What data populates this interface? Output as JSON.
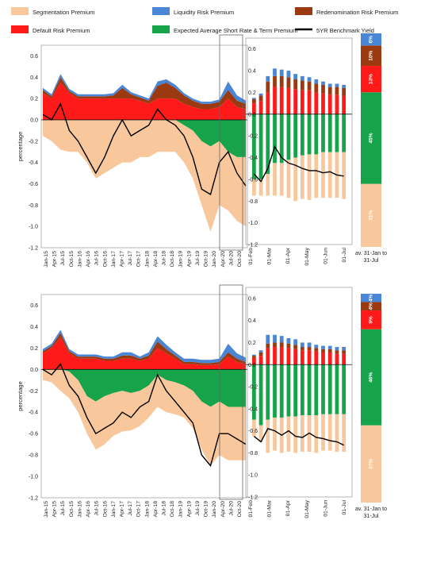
{
  "legend": {
    "items": [
      {
        "label": "Segmentation Premium",
        "color": "#f8c89c",
        "kind": "box"
      },
      {
        "label": "Liquidity Risk Premium",
        "color": "#4a86d6",
        "kind": "box"
      },
      {
        "label": "Redenomination Risk Premium",
        "color": "#9b3a10",
        "kind": "box"
      },
      {
        "label": "Default Risk Premium",
        "color": "#ff1a1a",
        "kind": "box"
      },
      {
        "label": "Expected Average Short Rate & Term Premium",
        "color": "#17a34a",
        "kind": "box"
      },
      {
        "label": "5YR Benchmark Yield",
        "color": "#000000",
        "kind": "line"
      }
    ]
  },
  "chart_data": [
    {
      "type": "area",
      "ylabel": "percentage",
      "ylim": [
        -1.2,
        0.7
      ],
      "yticks": [
        "0.6",
        "0.4",
        "0.2",
        "0.0",
        "-0.2",
        "-0.4",
        "-0.6",
        "-0.8",
        "-1.0",
        "-1.2"
      ],
      "xticks": [
        "Jan-15",
        "Apr-15",
        "Jul-15",
        "Oct-15",
        "Jan-16",
        "Apr-16",
        "Jul-16",
        "Oct-16",
        "Jan-17",
        "Apr-17",
        "Jul-17",
        "Oct-17",
        "Jan-18",
        "Apr-18",
        "Jul-18",
        "Oct-18",
        "Jan-19",
        "Apr-19",
        "Jul-19",
        "Oct-19",
        "Jan-20",
        "Apr-20",
        "Jul-20",
        "Oct-20"
      ],
      "series": [
        {
          "name": "Segmentation Premium",
          "values": [
            -0.15,
            -0.2,
            -0.28,
            -0.3,
            -0.3,
            -0.4,
            -0.55,
            -0.5,
            -0.45,
            -0.4,
            -0.4,
            -0.35,
            -0.35,
            -0.3,
            -0.3,
            -0.3,
            -0.35,
            -0.45,
            -0.6,
            -0.8,
            -0.6,
            -0.55,
            -0.6,
            -0.65
          ]
        },
        {
          "name": "Expected Average Short Rate & Term Premium",
          "values": [
            0,
            0,
            0,
            0,
            0,
            0,
            0,
            0,
            0,
            0,
            0,
            0,
            0,
            0,
            0,
            0,
            -0.05,
            -0.1,
            -0.2,
            -0.25,
            -0.2,
            -0.3,
            -0.35,
            -0.35
          ]
        },
        {
          "name": "Default Risk Premium",
          "values": [
            0.25,
            0.2,
            0.35,
            0.25,
            0.2,
            0.2,
            0.2,
            0.2,
            0.2,
            0.2,
            0.2,
            0.18,
            0.15,
            0.2,
            0.2,
            0.2,
            0.15,
            0.12,
            0.1,
            0.1,
            0.12,
            0.2,
            0.12,
            0.1
          ]
        },
        {
          "name": "Redenomination Risk Premium",
          "values": [
            0.03,
            0.02,
            0.05,
            0.02,
            0.02,
            0.02,
            0.02,
            0.02,
            0.03,
            0.1,
            0.04,
            0.03,
            0.03,
            0.12,
            0.15,
            0.1,
            0.08,
            0.06,
            0.05,
            0.05,
            0.05,
            0.08,
            0.06,
            0.05
          ]
        },
        {
          "name": "Liquidity Risk Premium",
          "values": [
            0.02,
            0.02,
            0.03,
            0.02,
            0.02,
            0.02,
            0.02,
            0.02,
            0.02,
            0.03,
            0.02,
            0.02,
            0.02,
            0.04,
            0.03,
            0.03,
            0.02,
            0.02,
            0.02,
            0.02,
            0.02,
            0.08,
            0.05,
            0.03
          ]
        },
        {
          "name": "5YR Benchmark Yield",
          "values": [
            0.05,
            0.0,
            0.15,
            -0.1,
            -0.2,
            -0.35,
            -0.5,
            -0.35,
            -0.15,
            0.0,
            -0.15,
            -0.1,
            -0.05,
            0.1,
            0.0,
            -0.05,
            -0.15,
            -0.35,
            -0.65,
            -0.7,
            -0.4,
            -0.3,
            -0.5,
            -0.62
          ]
        }
      ]
    },
    {
      "type": "bar",
      "ylim": [
        -1.2,
        0.7
      ],
      "yticks": [
        "0.6",
        "0.4",
        "0.2",
        "0.0",
        "-0.2",
        "-0.4",
        "-0.6",
        "-0.8",
        "-1.0",
        "-1.2"
      ],
      "xticks": [
        "01-Feb",
        "01-Mar",
        "01-Apr",
        "01-May",
        "01-Jun",
        "01-Jul"
      ],
      "series": [
        {
          "name": "Segmentation Premium",
          "values": [
            -0.15,
            -0.15,
            -0.2,
            -0.3,
            -0.3,
            -0.35,
            -0.4,
            -0.4,
            -0.42,
            -0.4,
            -0.42,
            -0.42,
            -0.42,
            -0.43
          ]
        },
        {
          "name": "Expected Average Short Rate & Term Premium",
          "values": [
            -0.6,
            -0.6,
            -0.55,
            -0.45,
            -0.45,
            -0.42,
            -0.4,
            -0.38,
            -0.37,
            -0.37,
            -0.35,
            -0.35,
            -0.35,
            -0.35
          ]
        },
        {
          "name": "Default Risk Premium",
          "values": [
            0.1,
            0.12,
            0.2,
            0.25,
            0.25,
            0.24,
            0.23,
            0.22,
            0.22,
            0.2,
            0.19,
            0.18,
            0.18,
            0.17
          ]
        },
        {
          "name": "Redenomination Risk Premium",
          "values": [
            0.04,
            0.05,
            0.1,
            0.1,
            0.1,
            0.1,
            0.09,
            0.09,
            0.08,
            0.08,
            0.08,
            0.07,
            0.07,
            0.07
          ]
        },
        {
          "name": "Liquidity Risk Premium",
          "values": [
            0.01,
            0.02,
            0.05,
            0.07,
            0.06,
            0.06,
            0.05,
            0.04,
            0.04,
            0.04,
            0.03,
            0.03,
            0.03,
            0.03
          ]
        },
        {
          "name": "5YR Benchmark Yield",
          "values": [
            -0.55,
            -0.62,
            -0.5,
            -0.3,
            -0.4,
            -0.45,
            -0.47,
            -0.5,
            -0.52,
            -0.52,
            -0.54,
            -0.53,
            -0.56,
            -0.57
          ]
        }
      ]
    },
    {
      "type": "bar",
      "stacked_share": true,
      "xlabel": "av. 31-Jan to 31-Jul",
      "segments": [
        {
          "name": "Segmentation Premium",
          "share": 31,
          "label": "31%"
        },
        {
          "name": "Expected Average Short Rate & Term Premium",
          "share": 45,
          "label": "45%"
        },
        {
          "name": "Default Risk Premium",
          "share": 13,
          "label": "13%"
        },
        {
          "name": "Redenomination Risk Premium",
          "share": 10,
          "label": "10%"
        },
        {
          "name": "Liquidity Risk Premium",
          "share": 6,
          "label": "6%"
        }
      ]
    },
    {
      "type": "area",
      "ylabel": "percentage",
      "ylim": [
        -1.2,
        0.7
      ],
      "yticks": [
        "0.6",
        "0.4",
        "0.2",
        "0.0",
        "-0.2",
        "-0.4",
        "-0.6",
        "-0.8",
        "-1.0",
        "-1.2"
      ],
      "xticks": [
        "Jan-15",
        "Apr-15",
        "Jul-15",
        "Oct-15",
        "Jan-16",
        "Apr-16",
        "Jul-16",
        "Oct-16",
        "Jan-17",
        "Apr-17",
        "Jul-17",
        "Oct-17",
        "Jan-18",
        "Apr-18",
        "Jul-18",
        "Oct-18",
        "Jan-19",
        "Apr-19",
        "Jul-19",
        "Oct-19",
        "Jan-20",
        "Apr-20",
        "Jul-20",
        "Oct-20"
      ],
      "series": [
        {
          "name": "Segmentation Premium",
          "values": [
            -0.1,
            -0.12,
            -0.2,
            -0.25,
            -0.3,
            -0.35,
            -0.45,
            -0.45,
            -0.4,
            -0.38,
            -0.35,
            -0.33,
            -0.3,
            -0.3,
            -0.3,
            -0.3,
            -0.3,
            -0.35,
            -0.45,
            -0.55,
            -0.5,
            -0.5,
            -0.5,
            -0.5
          ]
        },
        {
          "name": "Expected Average Short Rate & Term Premium",
          "values": [
            0,
            0,
            0,
            -0.02,
            -0.1,
            -0.25,
            -0.3,
            -0.25,
            -0.22,
            -0.2,
            -0.22,
            -0.2,
            -0.15,
            -0.05,
            -0.1,
            -0.12,
            -0.15,
            -0.2,
            -0.3,
            -0.35,
            -0.3,
            -0.35,
            -0.35,
            -0.35
          ]
        },
        {
          "name": "Default Risk Premium",
          "values": [
            0.15,
            0.2,
            0.3,
            0.15,
            0.1,
            0.1,
            0.1,
            0.08,
            0.08,
            0.1,
            0.1,
            0.08,
            0.1,
            0.2,
            0.15,
            0.1,
            0.05,
            0.05,
            0.04,
            0.04,
            0.05,
            0.12,
            0.07,
            0.05
          ]
        },
        {
          "name": "Redenomination Risk Premium",
          "values": [
            0.02,
            0.02,
            0.04,
            0.02,
            0.02,
            0.02,
            0.02,
            0.02,
            0.02,
            0.03,
            0.03,
            0.02,
            0.03,
            0.06,
            0.04,
            0.03,
            0.02,
            0.02,
            0.02,
            0.02,
            0.02,
            0.04,
            0.03,
            0.02
          ]
        },
        {
          "name": "Liquidity Risk Premium",
          "values": [
            0.02,
            0.02,
            0.03,
            0.02,
            0.02,
            0.02,
            0.02,
            0.02,
            0.02,
            0.03,
            0.03,
            0.02,
            0.03,
            0.05,
            0.04,
            0.03,
            0.03,
            0.03,
            0.03,
            0.03,
            0.03,
            0.08,
            0.05,
            0.04
          ]
        },
        {
          "name": "5YR Benchmark Yield",
          "values": [
            0.0,
            -0.05,
            0.05,
            -0.15,
            -0.25,
            -0.45,
            -0.6,
            -0.55,
            -0.5,
            -0.4,
            -0.45,
            -0.35,
            -0.3,
            -0.05,
            -0.2,
            -0.3,
            -0.4,
            -0.5,
            -0.8,
            -0.9,
            -0.6,
            -0.6,
            -0.65,
            -0.7
          ]
        }
      ]
    },
    {
      "type": "bar",
      "ylim": [
        -1.2,
        0.7
      ],
      "yticks": [
        "0.6",
        "0.4",
        "0.2",
        "0.0",
        "-0.2",
        "-0.4",
        "-0.6",
        "-0.8",
        "-1.0",
        "-1.2"
      ],
      "xticks": [
        "01-Feb",
        "01-Mar",
        "01-Apr",
        "01-May",
        "01-Jun",
        "01-Jul"
      ],
      "series": [
        {
          "name": "Segmentation Premium",
          "values": [
            -0.15,
            -0.15,
            -0.3,
            -0.3,
            -0.32,
            -0.32,
            -0.33,
            -0.33,
            -0.33,
            -0.34,
            -0.33,
            -0.33,
            -0.34,
            -0.34
          ]
        },
        {
          "name": "Expected Average Short Rate & Term Premium",
          "values": [
            -0.5,
            -0.55,
            -0.5,
            -0.48,
            -0.48,
            -0.47,
            -0.47,
            -0.46,
            -0.46,
            -0.46,
            -0.45,
            -0.45,
            -0.45,
            -0.45
          ]
        },
        {
          "name": "Default Risk Premium",
          "values": [
            0.06,
            0.08,
            0.15,
            0.16,
            0.16,
            0.15,
            0.14,
            0.13,
            0.13,
            0.12,
            0.11,
            0.11,
            0.1,
            0.1
          ]
        },
        {
          "name": "Redenomination Risk Premium",
          "values": [
            0.02,
            0.03,
            0.04,
            0.04,
            0.04,
            0.04,
            0.04,
            0.03,
            0.03,
            0.03,
            0.03,
            0.03,
            0.03,
            0.03
          ]
        },
        {
          "name": "Liquidity Risk Premium",
          "values": [
            0.01,
            0.02,
            0.08,
            0.07,
            0.06,
            0.05,
            0.05,
            0.04,
            0.04,
            0.03,
            0.03,
            0.03,
            0.03,
            0.03
          ]
        },
        {
          "name": "5YR Benchmark Yield",
          "values": [
            -0.65,
            -0.7,
            -0.58,
            -0.6,
            -0.64,
            -0.6,
            -0.65,
            -0.66,
            -0.62,
            -0.66,
            -0.67,
            -0.69,
            -0.7,
            -0.73
          ]
        }
      ]
    },
    {
      "type": "bar",
      "stacked_share": true,
      "xlabel": "av. 31-Jan to 31-Jul",
      "segments": [
        {
          "name": "Segmentation Premium",
          "share": 37,
          "label": "37%"
        },
        {
          "name": "Expected Average Short Rate & Term Premium",
          "share": 46,
          "label": "46%"
        },
        {
          "name": "Default Risk Premium",
          "share": 9,
          "label": "9%"
        },
        {
          "name": "Redenomination Risk Premium",
          "share": 4,
          "label": "4%"
        },
        {
          "name": "Liquidity Risk Premium",
          "share": 4,
          "label": "4%"
        }
      ]
    }
  ]
}
